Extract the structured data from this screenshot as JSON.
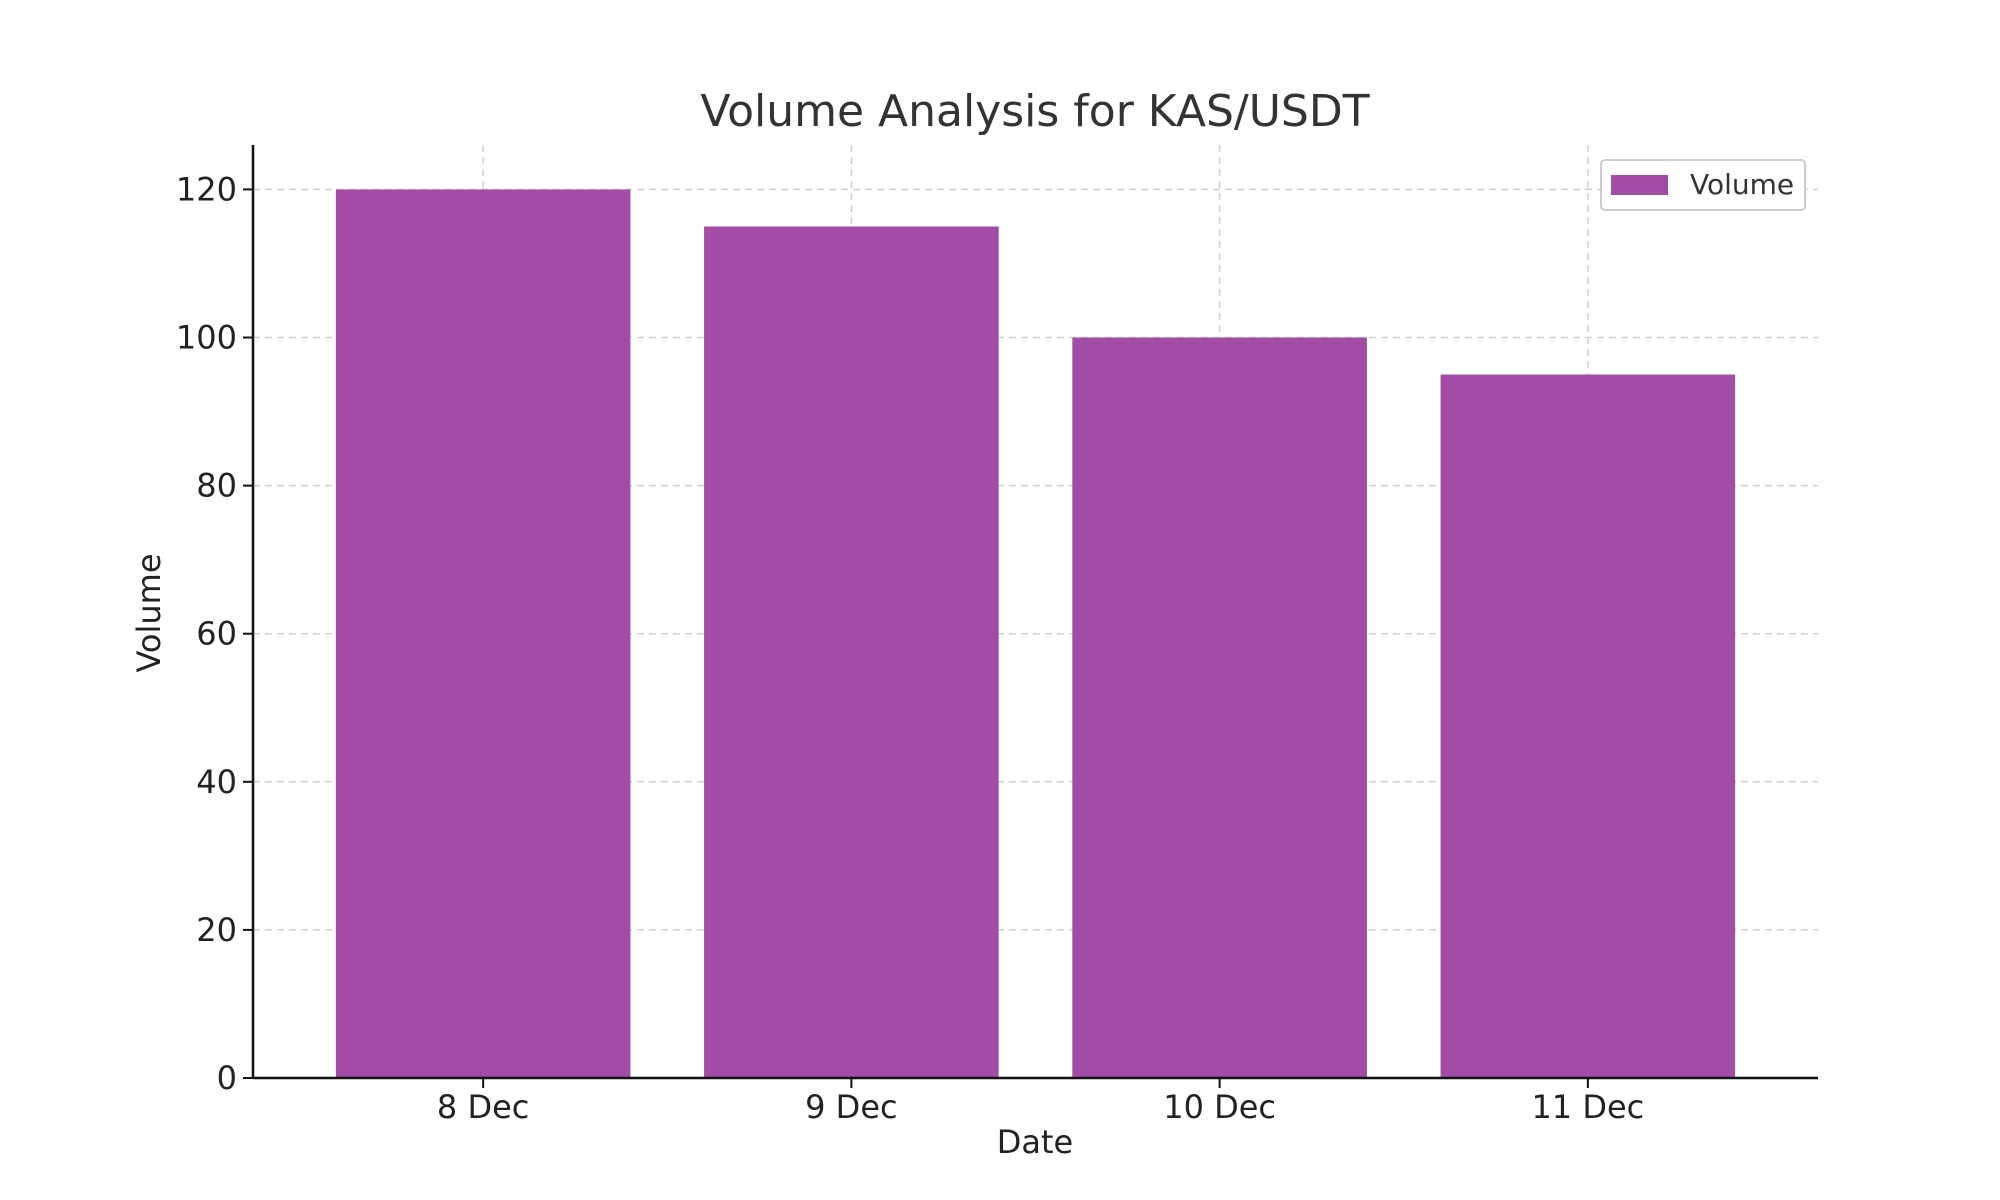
{
  "chart_data": {
    "type": "bar",
    "title": "Volume Analysis for KAS/USDT",
    "xlabel": "Date",
    "ylabel": "Volume",
    "categories": [
      "8 Dec",
      "9 Dec",
      "10 Dec",
      "11 Dec"
    ],
    "series": [
      {
        "name": "Volume",
        "values": [
          120,
          115,
          100,
          95
        ],
        "color": "#a34ca5"
      }
    ],
    "ylim": [
      0,
      126
    ],
    "yticks": [
      0,
      20,
      40,
      60,
      80,
      100,
      120
    ],
    "grid": true,
    "legend_position": "top-right"
  }
}
